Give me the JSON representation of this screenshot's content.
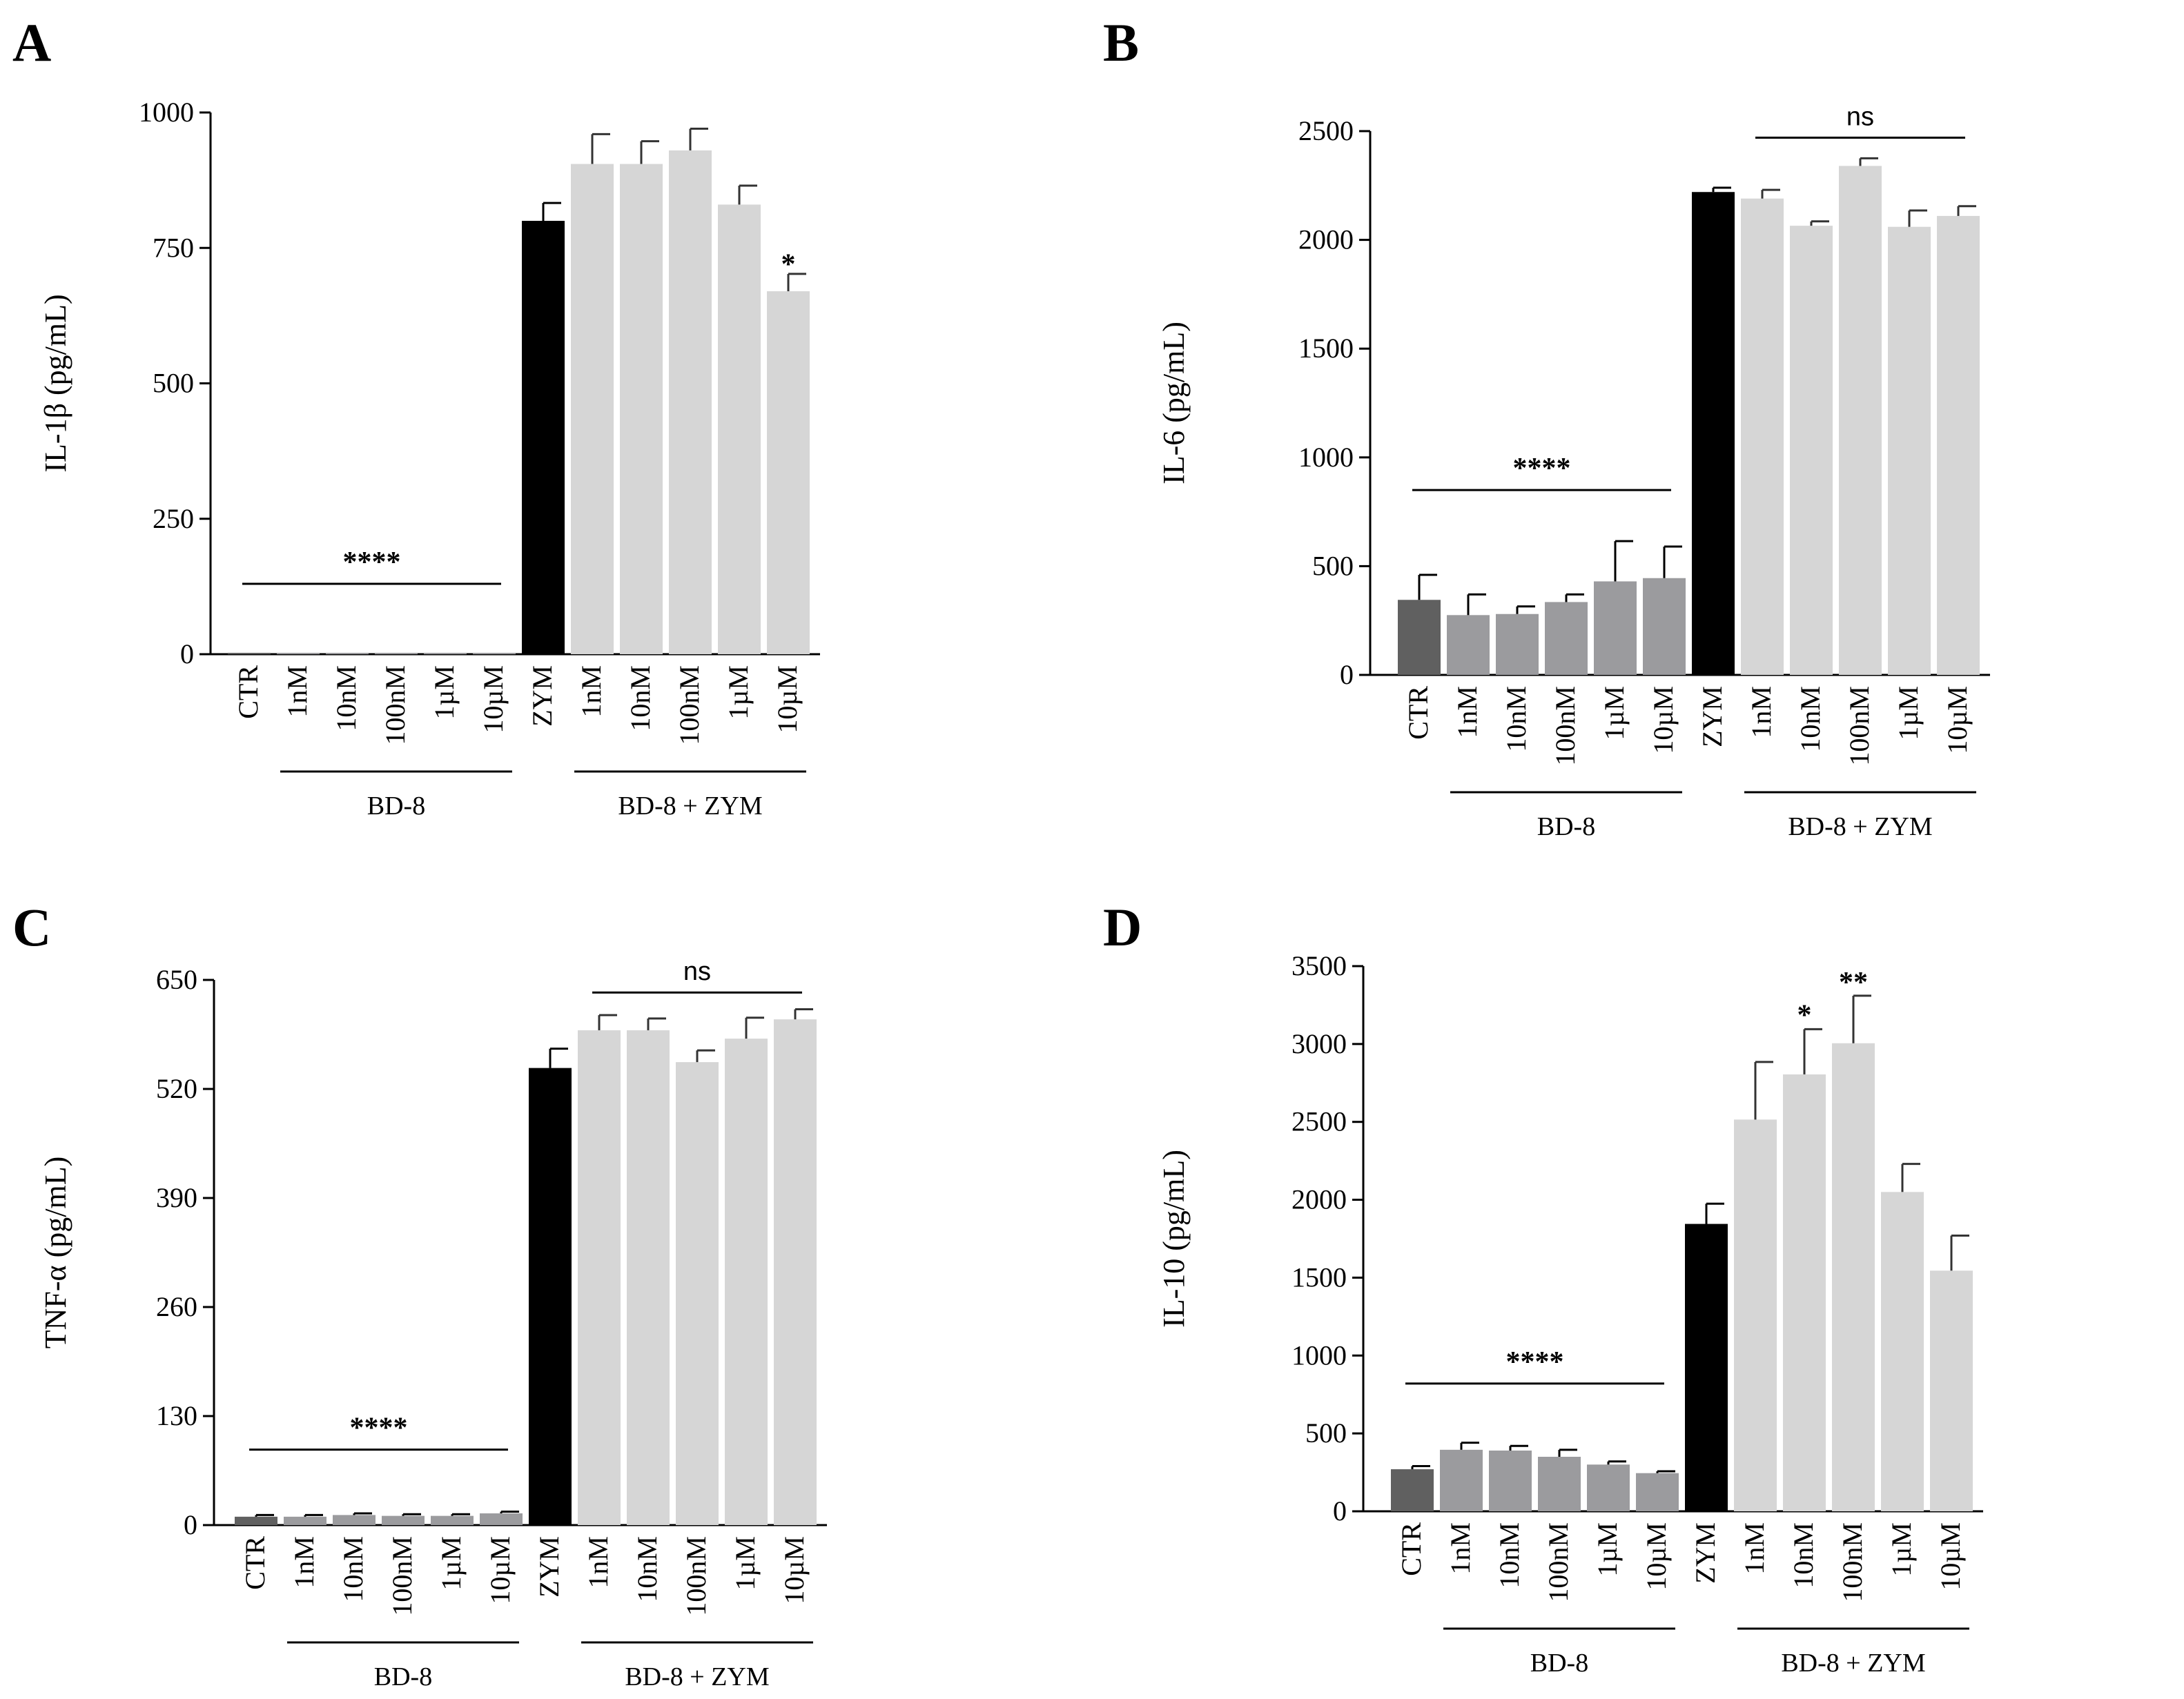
{
  "categories": [
    "CTR",
    "1nM",
    "10nM",
    "100nM",
    "1µM",
    "10µM",
    "ZYM",
    "1nM",
    "10nM",
    "100nM",
    "1µM",
    "10µM"
  ],
  "group_labels": [
    "BD-8",
    "BD-8 + ZYM"
  ],
  "colors": {
    "ctr": "#606060",
    "bd8": "#9b9b9e",
    "zym": "#000000",
    "bd8zym": "#d6d6d6",
    "axis": "#000000"
  },
  "chart_data": [
    {
      "type": "bar",
      "panel": "A",
      "ylabel": "IL-1β (pg/mL)",
      "ylim": [
        0,
        1000
      ],
      "yticks": [
        0,
        250,
        500,
        750,
        1000
      ],
      "values": [
        2,
        2,
        2,
        2,
        2,
        2,
        800,
        905,
        905,
        930,
        830,
        670
      ],
      "errors": [
        0,
        0,
        0,
        0,
        0,
        0,
        33,
        55,
        42,
        40,
        35,
        32
      ],
      "annotations": [
        {
          "label": "****",
          "from": 0,
          "to": 5,
          "y": 130
        },
        {
          "label": "*",
          "bar": 11,
          "y": 715
        }
      ]
    },
    {
      "type": "bar",
      "panel": "B",
      "ylabel": "IL-6 (pg/mL)",
      "ylim": [
        0,
        2500
      ],
      "yticks": [
        0,
        500,
        1000,
        1500,
        2000,
        2500
      ],
      "values": [
        345,
        275,
        280,
        335,
        430,
        445,
        2220,
        2190,
        2065,
        2340,
        2060,
        2110
      ],
      "errors": [
        115,
        95,
        35,
        35,
        185,
        145,
        20,
        40,
        20,
        35,
        75,
        45
      ],
      "annotations": [
        {
          "label": "****",
          "from": 0,
          "to": 5,
          "y": 850
        },
        {
          "label": "ns",
          "from": 7,
          "to": 11,
          "y": 2470
        }
      ]
    },
    {
      "type": "bar",
      "panel": "C",
      "ylabel": "TNF-α (pg/mL)",
      "ylim": [
        0,
        650
      ],
      "yticks": [
        0,
        130,
        260,
        390,
        520,
        650
      ],
      "values": [
        10,
        10,
        12,
        11,
        11,
        14,
        545,
        590,
        590,
        552,
        580,
        603
      ],
      "errors": [
        2,
        2,
        2,
        2,
        2,
        2,
        23,
        18,
        14,
        14,
        25,
        12
      ],
      "annotations": [
        {
          "label": "****",
          "from": 0,
          "to": 5,
          "y": 90
        },
        {
          "label": "ns",
          "from": 7,
          "to": 11,
          "y": 635
        }
      ]
    },
    {
      "type": "bar",
      "panel": "D",
      "ylabel": "IL-10 (pg/mL)",
      "ylim": [
        0,
        3500
      ],
      "yticks": [
        0,
        500,
        1000,
        1500,
        2000,
        2500,
        3000,
        3500
      ],
      "values": [
        270,
        395,
        390,
        350,
        300,
        245,
        1845,
        2515,
        2805,
        3005,
        2050,
        1545
      ],
      "errors": [
        20,
        45,
        30,
        45,
        20,
        12,
        130,
        370,
        290,
        305,
        180,
        225
      ],
      "annotations": [
        {
          "label": "****",
          "from": 0,
          "to": 5,
          "y": 820
        },
        {
          "label": "*",
          "bar": 8,
          "y": 3170
        },
        {
          "label": "**",
          "bar": 9,
          "y": 3380
        }
      ]
    }
  ]
}
